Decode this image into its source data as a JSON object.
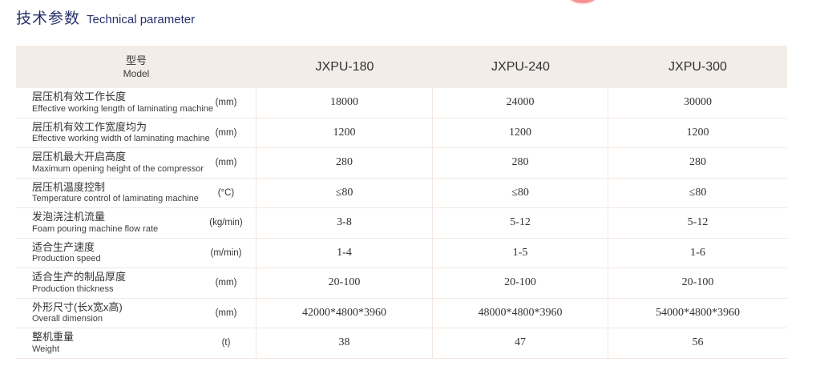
{
  "page": {
    "title_zh": "技术参数",
    "title_en": "Technical parameter",
    "title_color": "#26306b",
    "header_bg": "#f2ede8",
    "row_border_color": "#f3e7e1",
    "badge_color": "#fa9191"
  },
  "table": {
    "header": {
      "model_label_zh": "型号",
      "model_label_en": "Model",
      "columns": [
        "JXPU-180",
        "JXPU-240",
        "JXPU-300"
      ]
    },
    "rows": [
      {
        "zh": "层压机有效工作长度",
        "en": "Effective working length of laminating machine",
        "unit": "(mm)",
        "values": [
          "18000",
          "24000",
          "30000"
        ]
      },
      {
        "zh": "层压机有效工作宽度均为",
        "en": "Effective working width of laminating machine",
        "unit": "(mm)",
        "values": [
          "1200",
          "1200",
          "1200"
        ]
      },
      {
        "zh": "层压机最大开启高度",
        "en": "Maximum opening height of the compressor",
        "unit": "(mm)",
        "values": [
          "280",
          "280",
          "280"
        ]
      },
      {
        "zh": "层压机温度控制",
        "en": "Temperature control of laminating machine",
        "unit": "(°C)",
        "values": [
          "≤80",
          "≤80",
          "≤80"
        ]
      },
      {
        "zh": "发泡浇注机流量",
        "en": "Foam pouring machine flow rate",
        "unit": "(kg/min)",
        "values": [
          "3-8",
          "5-12",
          "5-12"
        ]
      },
      {
        "zh": "适合生产速度",
        "en": "Production speed",
        "unit": "(m/min)",
        "values": [
          "1-4",
          "1-5",
          "1-6"
        ]
      },
      {
        "zh": "适合生产的制品厚度",
        "en": "Production thickness",
        "unit": "(mm)",
        "values": [
          "20-100",
          "20-100",
          "20-100"
        ]
      },
      {
        "zh": "外形尺寸(长x宽x高)",
        "en": "Overall dimension",
        "unit": "(mm)",
        "values": [
          "42000*4800*3960",
          "48000*4800*3960",
          "54000*4800*3960"
        ]
      },
      {
        "zh": "整机重量",
        "en": "Weight",
        "unit": "(t)",
        "values": [
          "38",
          "47",
          "56"
        ]
      }
    ]
  }
}
